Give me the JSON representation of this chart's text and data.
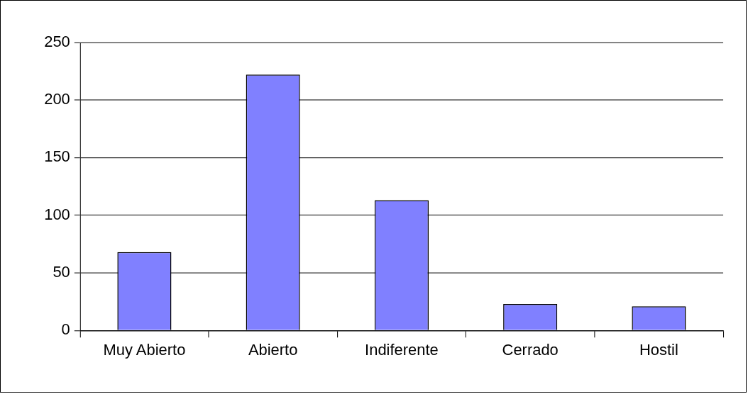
{
  "chart_data": {
    "type": "bar",
    "categories": [
      "Muy Abierto",
      "Abierto",
      "Indiferente",
      "Cerrado",
      "Hostil"
    ],
    "values": [
      68,
      222,
      113,
      23,
      21
    ],
    "color": "#8080ff",
    "ylim": [
      0,
      250
    ],
    "yticks": [
      0,
      50,
      100,
      150,
      200,
      250
    ],
    "grid": "y",
    "legend": false
  }
}
